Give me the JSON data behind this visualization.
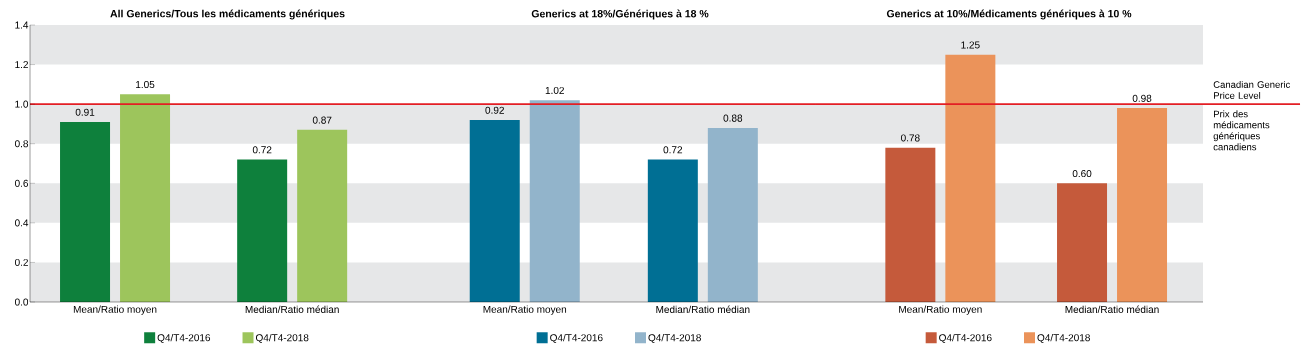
{
  "chart_data": [
    {
      "type": "bar",
      "title": "All Generics/Tous les médicaments génériques",
      "categories": [
        "Mean/Ratio moyen",
        "Median/Ratio médian"
      ],
      "series": [
        {
          "name": "Q4/T4-2016",
          "color": "#0e803c",
          "values": [
            0.91,
            0.72
          ],
          "value_labels": [
            "0.91",
            "0.72"
          ]
        },
        {
          "name": "Q4/T4-2018",
          "color": "#9dc55c",
          "values": [
            1.05,
            0.87
          ],
          "value_labels": [
            "1.05",
            "0.87"
          ]
        }
      ],
      "ylim": [
        0,
        1.4
      ],
      "yticks": [
        {
          "value": 0,
          "label": "0.0"
        },
        {
          "value": 0.2,
          "label": "0.2"
        },
        {
          "value": 0.4,
          "label": "0.4"
        },
        {
          "value": 0.6,
          "label": "0.6"
        },
        {
          "value": 0.8,
          "label": "0.8"
        },
        {
          "value": 1.0,
          "label": "1.0"
        },
        {
          "value": 1.2,
          "label": "1.2"
        },
        {
          "value": 1.4,
          "label": "1.4"
        }
      ],
      "bands": [
        {
          "axis": "y",
          "from": 0,
          "to": 0.2,
          "color": "#e6e7e8"
        },
        {
          "axis": "y",
          "from": 0.4,
          "to": 0.6,
          "color": "#e6e7e8"
        },
        {
          "axis": "y",
          "from": 0.8,
          "to": 1.0,
          "color": "#e6e7e8"
        },
        {
          "axis": "y",
          "from": 1.2,
          "to": 1.4,
          "color": "#e6e7e8"
        }
      ],
      "ref_lines": [
        {
          "axis": "y",
          "value": 1.0,
          "color": "#e31e24"
        }
      ],
      "legend": "bottom"
    },
    {
      "type": "bar",
      "title": "Generics at 18%/Génériques à  18 %",
      "categories": [
        "Mean/Ratio moyen",
        "Median/Ratio médian"
      ],
      "series": [
        {
          "name": "Q4/T4-2016",
          "color": "#006f94",
          "values": [
            0.92,
            0.72
          ],
          "value_labels": [
            "0.92",
            "0.72"
          ]
        },
        {
          "name": "Q4/T4-2018",
          "color": "#92b4cb",
          "values": [
            1.02,
            0.88
          ],
          "value_labels": [
            "1.02",
            "0.88"
          ]
        }
      ],
      "ylim": [
        0,
        1.4
      ],
      "tick_labels": "x",
      "bands": [
        {
          "axis": "y",
          "from": 0,
          "to": 0.2,
          "color": "#e6e7e8"
        },
        {
          "axis": "y",
          "from": 0.4,
          "to": 0.6,
          "color": "#e6e7e8"
        },
        {
          "axis": "y",
          "from": 0.8,
          "to": 1.0,
          "color": "#e6e7e8"
        },
        {
          "axis": "y",
          "from": 1.2,
          "to": 1.4,
          "color": "#e6e7e8"
        }
      ],
      "ref_lines": [
        {
          "axis": "y",
          "value": 1.0,
          "color": "#e31e24"
        }
      ],
      "legend": "bottom"
    },
    {
      "type": "bar",
      "title": "Generics at 10%/Médicaments génériques à 10 %",
      "categories": [
        "Mean/Ratio moyen",
        "Median/Ratio médian"
      ],
      "series": [
        {
          "name": "Q4/T4-2016",
          "color": "#c55a3b",
          "values": [
            0.78,
            0.6
          ],
          "value_labels": [
            "0.78",
            "0.60"
          ]
        },
        {
          "name": "Q4/T4-2018",
          "color": "#eb935a",
          "values": [
            1.25,
            0.98
          ],
          "value_labels": [
            "1.25",
            "0.98"
          ]
        }
      ],
      "ylim": [
        0,
        1.4
      ],
      "tick_labels": "x",
      "bands": [
        {
          "axis": "y",
          "from": 0,
          "to": 0.2,
          "color": "#e6e7e8"
        },
        {
          "axis": "y",
          "from": 0.4,
          "to": 0.6,
          "color": "#e6e7e8"
        },
        {
          "axis": "y",
          "from": 0.8,
          "to": 1.0,
          "color": "#e6e7e8"
        },
        {
          "axis": "y",
          "from": 1.2,
          "to": 1.4,
          "color": "#e6e7e8"
        }
      ],
      "ref_lines": [
        {
          "axis": "y",
          "value": 1.0,
          "color": "#e31e24",
          "label": "Canadian Generic Price Level"
        }
      ],
      "annotations": [
        "Prix des médicaments génériques canadiens"
      ],
      "legend": "bottom"
    }
  ]
}
